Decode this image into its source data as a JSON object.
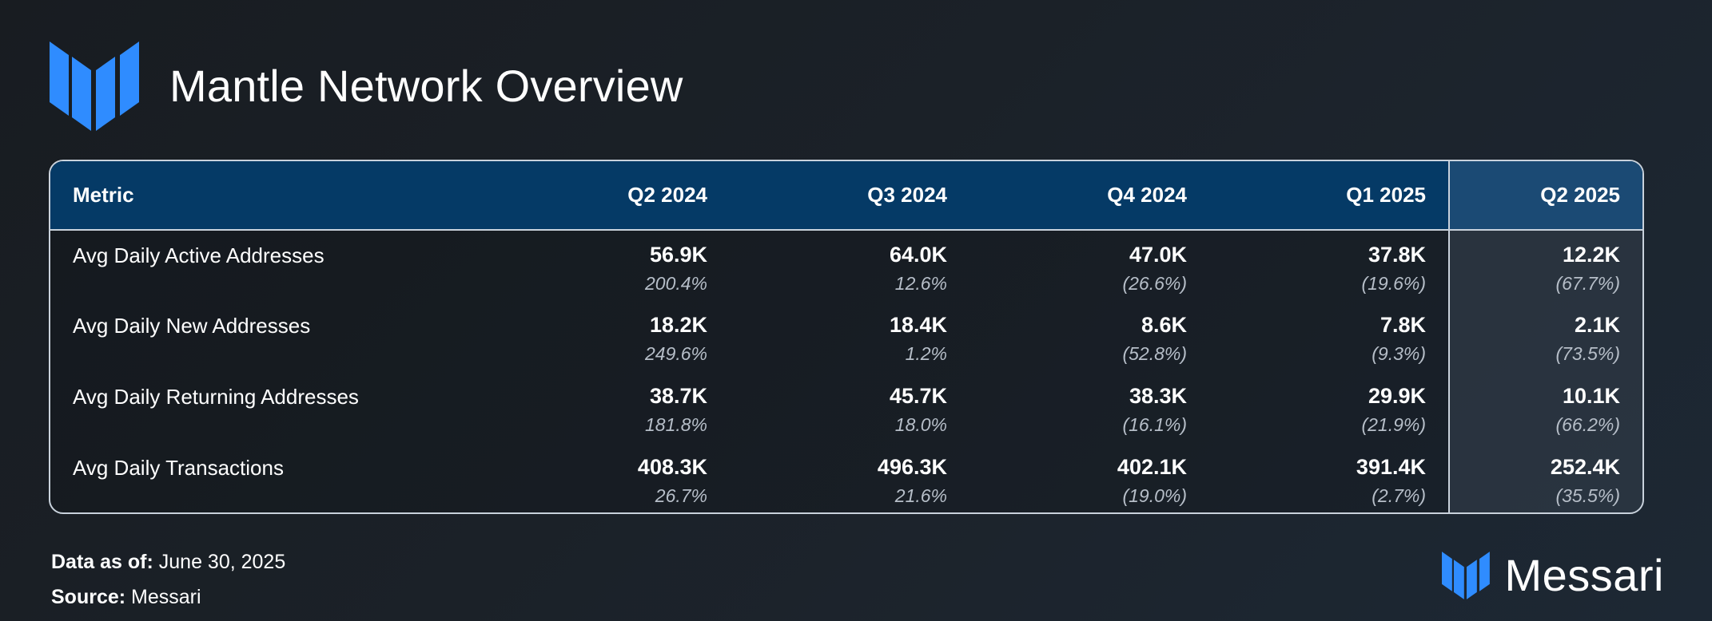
{
  "header": {
    "title": "Mantle Network Overview"
  },
  "colors": {
    "accent_blue": "#2f8cff",
    "header_row": "#053a66",
    "header_highlight": "#1b4a74",
    "border": "#c9d2dc",
    "change_text": "#b6bec8"
  },
  "chart_data": {
    "type": "table",
    "title": "Mantle Network Overview",
    "columns": [
      "Metric",
      "Q2 2024",
      "Q3 2024",
      "Q4 2024",
      "Q1 2025",
      "Q2 2025"
    ],
    "highlight_column": "Q2 2025",
    "rows": [
      {
        "metric": "Avg Daily Active Addresses",
        "values": [
          "56.9K",
          "64.0K",
          "47.0K",
          "37.8K",
          "12.2K"
        ],
        "changes": [
          "200.4%",
          "12.6%",
          "(26.6%)",
          "(19.6%)",
          "(67.7%)"
        ]
      },
      {
        "metric": "Avg Daily New Addresses",
        "values": [
          "18.2K",
          "18.4K",
          "8.6K",
          "7.8K",
          "2.1K"
        ],
        "changes": [
          "249.6%",
          "1.2%",
          "(52.8%)",
          "(9.3%)",
          "(73.5%)"
        ]
      },
      {
        "metric": "Avg Daily Returning Addresses",
        "values": [
          "38.7K",
          "45.7K",
          "38.3K",
          "29.9K",
          "10.1K"
        ],
        "changes": [
          "181.8%",
          "18.0%",
          "(16.1%)",
          "(21.9%)",
          "(66.2%)"
        ]
      },
      {
        "metric": "Avg Daily Transactions",
        "values": [
          "408.3K",
          "496.3K",
          "402.1K",
          "391.4K",
          "252.4K"
        ],
        "changes": [
          "26.7%",
          "21.6%",
          "(19.0%)",
          "(2.7%)",
          "(35.5%)"
        ]
      }
    ]
  },
  "footer": {
    "data_as_of_label": "Data as of:",
    "data_as_of_value": "June 30, 2025",
    "source_label": "Source:",
    "source_value": "Messari"
  },
  "brand": {
    "name": "Messari",
    "icon": "messari-logo-icon"
  }
}
